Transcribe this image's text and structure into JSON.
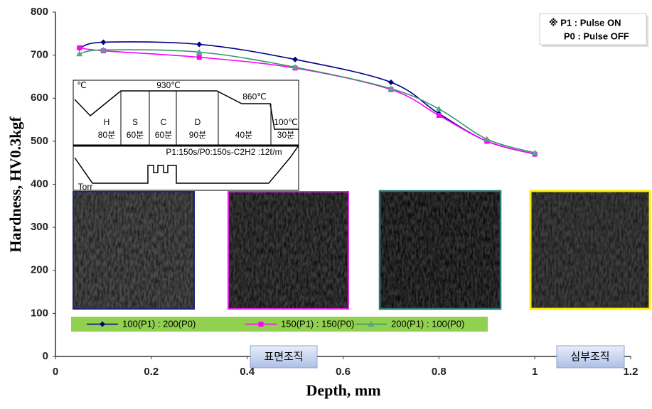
{
  "chart_data": {
    "type": "line",
    "x_label": "Depth,  mm",
    "y_label": "Hardness, HV0.3kgf",
    "x": [
      0.05,
      0.1,
      0.3,
      0.5,
      0.7,
      0.8,
      0.9,
      1.0
    ],
    "series": [
      {
        "name": "100(P1) : 200(P0)",
        "color": "#000080",
        "marker": "diamond",
        "values": [
          716,
          730,
          725,
          690,
          637,
          564,
          500,
          470
        ]
      },
      {
        "name": "150(P1) : 150(P0)",
        "color": "#ff00ff",
        "marker": "square",
        "values": [
          717,
          710,
          695,
          670,
          620,
          560,
          500,
          470
        ]
      },
      {
        "name": "200(P1) : 100(P0)",
        "color": "#339966",
        "marker": "triangle",
        "values": [
          703,
          712,
          707,
          672,
          622,
          575,
          505,
          473
        ]
      }
    ],
    "xlim": [
      0,
      1.2
    ],
    "xticks": [
      0,
      0.2,
      0.4,
      0.6,
      0.8,
      1,
      1.2
    ],
    "ylim": [
      0,
      800
    ],
    "yticks": [
      0,
      100,
      200,
      300,
      400,
      500,
      600,
      700,
      800
    ],
    "grid": false,
    "annotations": [
      "※ P1 : Pulse ON",
      "P0 : Pulse OFF",
      "표면조직",
      "심부조직"
    ],
    "inset_labels": [
      "℃",
      "930℃",
      "860℃",
      "100℃",
      "H",
      "S",
      "C",
      "D",
      "80분",
      "60분",
      "60분",
      "90분",
      "40분",
      "30분",
      "P1:150s/P0:150s-C2H2 :12ℓ/m",
      "Torr"
    ]
  }
}
